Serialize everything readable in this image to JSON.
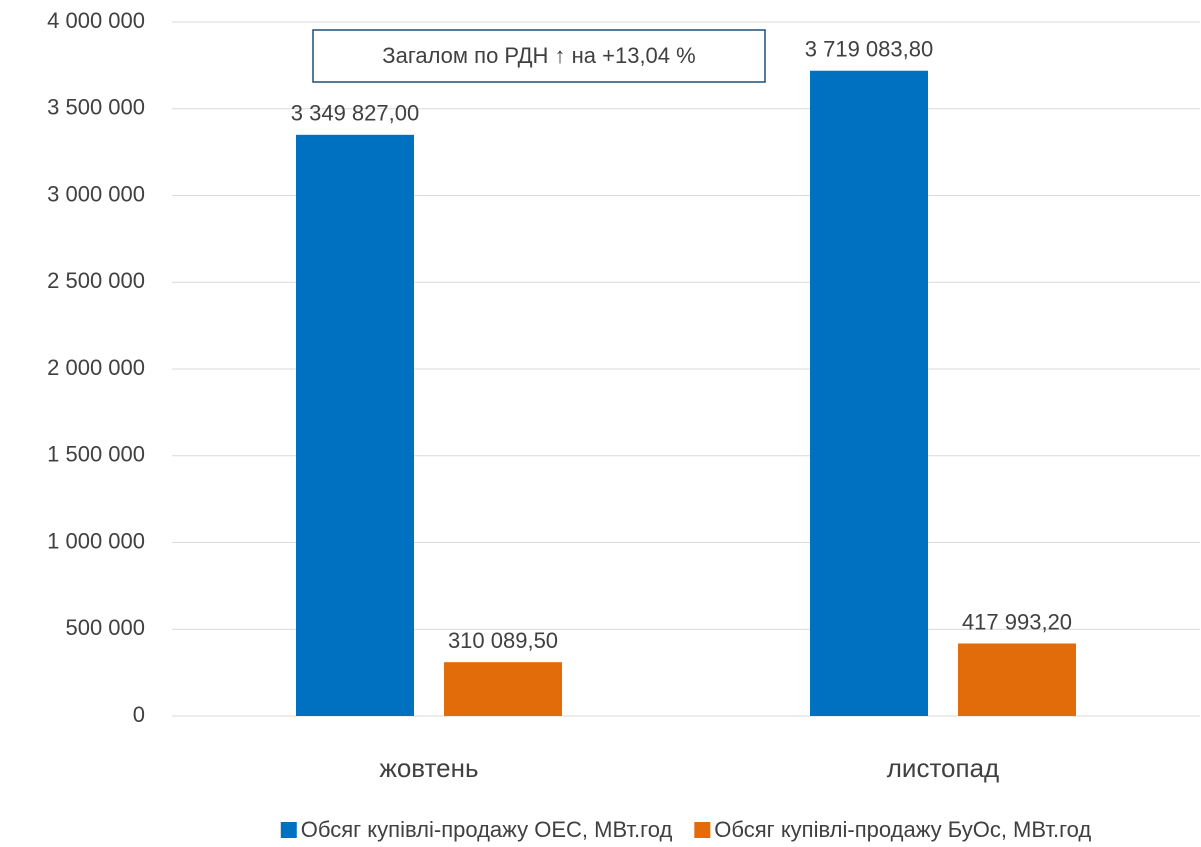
{
  "chart_data": {
    "type": "bar",
    "categories": [
      "жовтень",
      "листопад"
    ],
    "series": [
      {
        "name": "Обсяг купівлі-продажу ОЕС, МВт.год",
        "color": "#0070c0",
        "values": [
          3349827.0,
          3719083.8
        ],
        "value_labels": [
          "3 349 827,00",
          "3 719 083,80"
        ]
      },
      {
        "name": "Обсяг купівлі-продажу БуОс, МВт.год",
        "color": "#e36c0a",
        "values": [
          310089.5,
          417993.2
        ],
        "value_labels": [
          "310 089,50",
          "417 993,20"
        ]
      }
    ],
    "ylim": [
      0,
      4000000
    ],
    "yticks": [
      0,
      {
        "value": 500000,
        "label": "500 000"
      },
      {
        "value": 1000000,
        "label": "1 000 000"
      },
      {
        "value": 1500000,
        "label": "1 500 000"
      },
      {
        "value": 2000000,
        "label": "2 000 000"
      },
      {
        "value": 2500000,
        "label": "2 500 000"
      },
      {
        "value": 3000000,
        "label": "3 000 000"
      },
      {
        "value": 3500000,
        "label": "3 500 000"
      },
      {
        "value": 4000000,
        "label": "4 000 000"
      }
    ],
    "grid": true,
    "legend": "bottom",
    "annotation": "Загалом по РДН ↑ на +13,04 %"
  }
}
